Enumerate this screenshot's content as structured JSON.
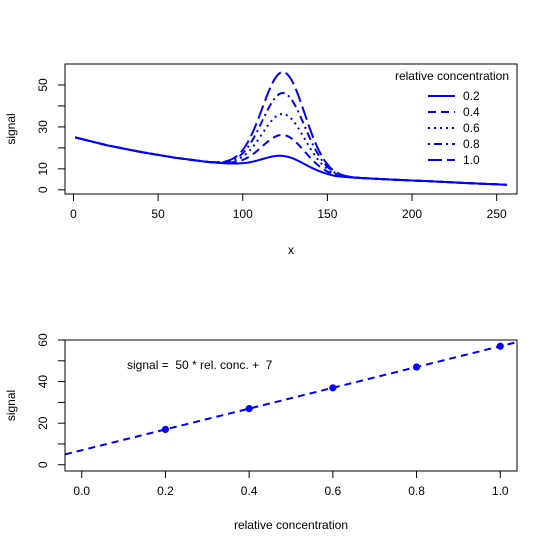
{
  "colors": {
    "series": "#0000ff",
    "axis": "#000000"
  },
  "chart_data": [
    {
      "type": "line",
      "xlabel": "x",
      "ylabel": "signal",
      "xlim": [
        -5,
        262
      ],
      "ylim": [
        -2,
        60
      ],
      "x_ticks": [
        0,
        50,
        100,
        150,
        200,
        250
      ],
      "y_ticks": [
        0,
        10,
        20,
        30,
        40,
        50
      ],
      "y_tick_labels": [
        "0",
        "10",
        "",
        "30",
        "",
        "50"
      ],
      "legend": {
        "title": "relative concentration",
        "position": "top-right",
        "entries": [
          "0.2",
          "0.4",
          "0.6",
          "0.8",
          "1.0"
        ]
      },
      "baseline": {
        "x": [
          1,
          20,
          40,
          60,
          80,
          96,
          120,
          150,
          154,
          170,
          190,
          210,
          230,
          256
        ],
        "y": [
          25,
          21.2,
          18,
          15.3,
          13.2,
          12,
          9.5,
          6.8,
          6.3,
          5.6,
          4.8,
          4.1,
          3.3,
          2.4
        ]
      },
      "peak": {
        "center": 124,
        "width": 12.5
      },
      "series": [
        {
          "name": "0.2",
          "relative_concentration": 0.2,
          "peak_height": 7,
          "dash": "solid"
        },
        {
          "name": "0.4",
          "relative_concentration": 0.4,
          "peak_height": 17,
          "dash": "dashed"
        },
        {
          "name": "0.6",
          "relative_concentration": 0.6,
          "peak_height": 27,
          "dash": "dotted"
        },
        {
          "name": "0.8",
          "relative_concentration": 0.8,
          "peak_height": 37,
          "dash": "dotdash"
        },
        {
          "name": "1.0",
          "relative_concentration": 1.0,
          "peak_height": 47,
          "dash": "longdash"
        }
      ]
    },
    {
      "type": "scatter",
      "xlabel": "relative concentration",
      "ylabel": "signal",
      "xlim": [
        -0.04,
        1.04
      ],
      "ylim": [
        -3,
        60
      ],
      "x_ticks": [
        0.0,
        0.2,
        0.4,
        0.6,
        0.8,
        1.0
      ],
      "x_tick_labels": [
        "0.0",
        "0.2",
        "0.4",
        "0.6",
        "0.8",
        "1.0"
      ],
      "y_ticks": [
        0,
        10,
        20,
        30,
        40,
        50,
        60
      ],
      "y_tick_labels": [
        "0",
        "",
        "20",
        "",
        "40",
        "",
        "60"
      ],
      "points": [
        {
          "x": 0.2,
          "y": 17
        },
        {
          "x": 0.4,
          "y": 27
        },
        {
          "x": 0.6,
          "y": 37
        },
        {
          "x": 0.8,
          "y": 47
        },
        {
          "x": 1.0,
          "y": 57
        }
      ],
      "fit": {
        "slope": 50,
        "intercept": 7
      },
      "annotation": "signal =  50 * rel. conc. +  7"
    }
  ]
}
